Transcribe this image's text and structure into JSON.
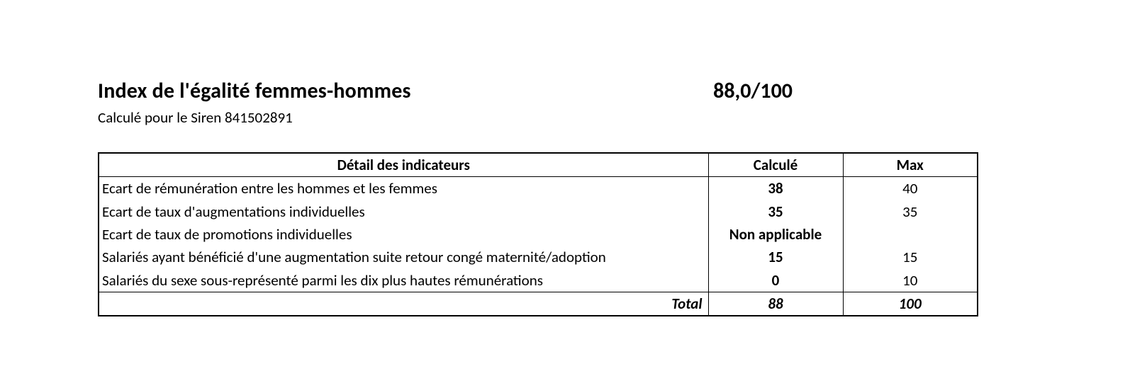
{
  "header": {
    "title": "Index de l'égalité femmes-hommes",
    "score": "88,0/100",
    "subtitle": "Calculé pour le Siren 841502891"
  },
  "table": {
    "columns": {
      "detail": "Détail des indicateurs",
      "calc": "Calculé",
      "max": "Max"
    },
    "rows": [
      {
        "detail": "Ecart de rémunération entre les hommes et les femmes",
        "calc": "38",
        "max": "40"
      },
      {
        "detail": "Ecart de taux d'augmentations individuelles",
        "calc": "35",
        "max": "35"
      },
      {
        "detail": "Ecart de taux de promotions individuelles",
        "calc": "Non applicable",
        "max": ""
      },
      {
        "detail": "Salariés ayant bénéficié d'une augmentation suite retour congé maternité/adoption",
        "calc": "15",
        "max": "15"
      },
      {
        "detail": "Salariés du sexe sous-représenté parmi les dix plus hautes rémunérations",
        "calc": "0",
        "max": "10"
      }
    ],
    "footer": {
      "label": "Total",
      "calc": "88",
      "max": "100"
    }
  }
}
